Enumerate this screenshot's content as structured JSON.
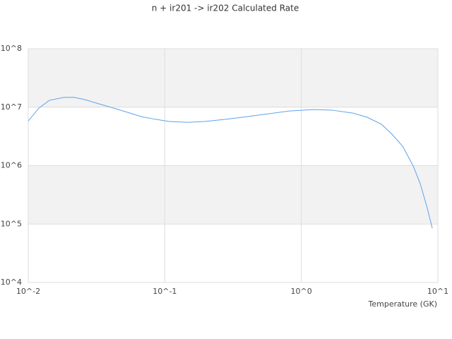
{
  "chart_data": {
    "type": "line",
    "title": "n + ir201 -> ir202 Calculated Rate",
    "x_label": "Temperature (GK)",
    "x_scale": "log",
    "y_scale": "log",
    "x": [
      0.01,
      0.012,
      0.0143,
      0.0182,
      0.0217,
      0.0259,
      0.0329,
      0.0418,
      0.053,
      0.0673,
      0.0853,
      0.108,
      0.146,
      0.196,
      0.281,
      0.402,
      0.574,
      0.82,
      1.24,
      1.68,
      2.4,
      3.04,
      3.86,
      4.61,
      5.52,
      6.59,
      7.43,
      8.37,
      9.1
    ],
    "series": [
      {
        "color": "#5ea2e8",
        "values": [
          5800000,
          9700000,
          13100000,
          14700000,
          14700000,
          13500000,
          11400000,
          9700000,
          8200000,
          6900000,
          6200000,
          5700000,
          5500000,
          5700000,
          6200000,
          6900000,
          7700000,
          8600000,
          9100000,
          8900000,
          7900000,
          6700000,
          5100000,
          3450000,
          2150000,
          990000,
          490000,
          186000,
          85000
        ]
      }
    ],
    "xlim": [
      0.01,
      10
    ],
    "ylim": [
      10000,
      100000000
    ],
    "xticks": [
      {
        "value": 0.01,
        "label": "10^-2"
      },
      {
        "value": 0.1,
        "label": "10^-1"
      },
      {
        "value": 1,
        "label": "10^0"
      },
      {
        "value": 10,
        "label": "10^1"
      }
    ],
    "yticks": [
      {
        "value": 10000,
        "label": "10^4"
      },
      {
        "value": 100000,
        "label": "10^5"
      },
      {
        "value": 1000000,
        "label": "10^6"
      },
      {
        "value": 10000000,
        "label": "10^7"
      },
      {
        "value": 100000000,
        "label": "10^8"
      }
    ],
    "grid": true,
    "band_color": "#f2f2f2",
    "grid_color": "#dddddd"
  }
}
